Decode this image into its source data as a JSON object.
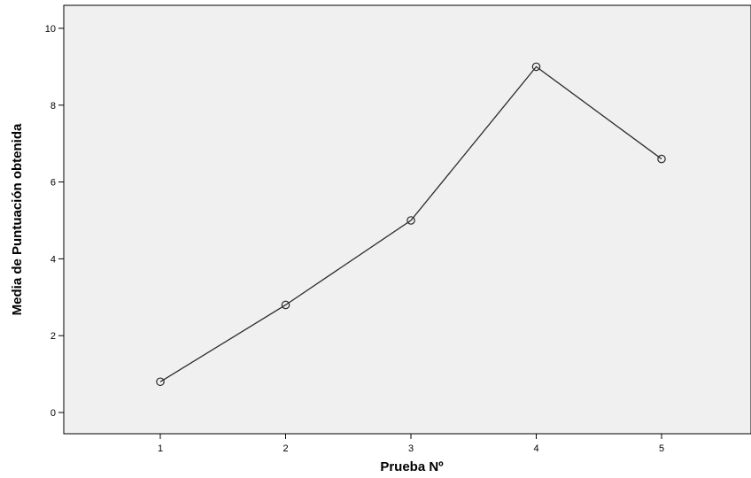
{
  "chart_data": {
    "type": "line",
    "title": "",
    "xlabel": "Prueba Nº",
    "ylabel": "Media de Puntuación obtenida",
    "x": [
      1,
      2,
      3,
      4,
      5
    ],
    "categories": [
      "1",
      "2",
      "3",
      "4",
      "5"
    ],
    "series": [
      {
        "values": [
          0.8,
          2.8,
          5.0,
          9.0,
          6.6
        ]
      }
    ],
    "ylim": [
      0,
      10
    ],
    "yticks": [
      0,
      2,
      4,
      6,
      8,
      10
    ],
    "ytick_labels": [
      "0",
      "2",
      "4",
      "6",
      "8",
      "10"
    ],
    "grid": false,
    "legend": "none",
    "marker": "open-circle",
    "colors": {
      "plot_background": "#f0f0f0",
      "line": "#2b2b2b",
      "axis": "#000000"
    }
  }
}
